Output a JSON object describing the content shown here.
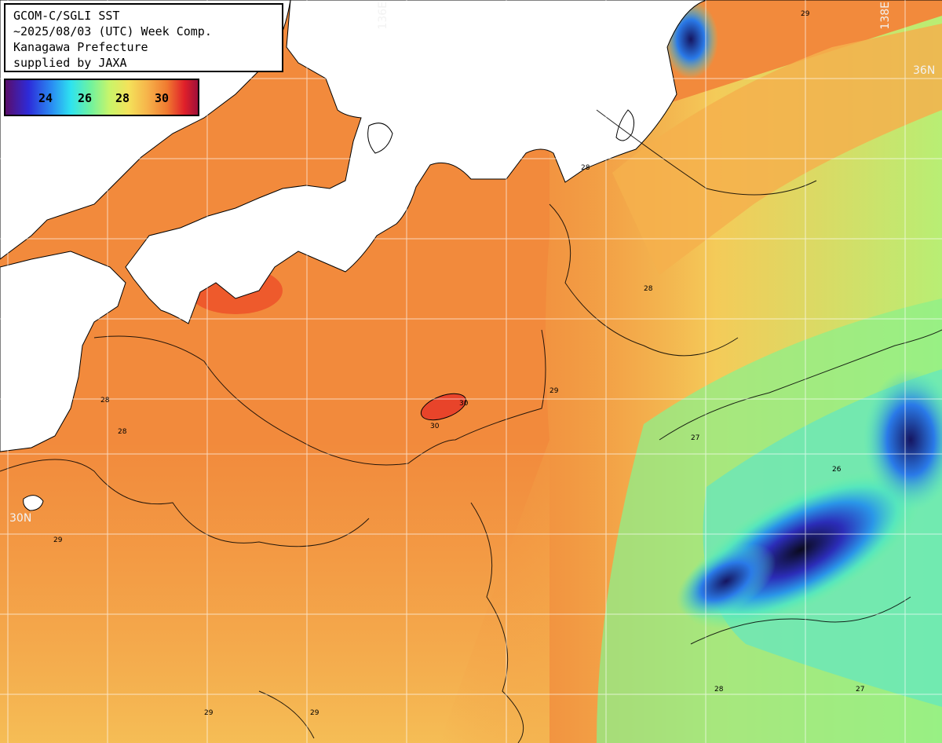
{
  "title_lines": [
    "GCOM-C/SGLI SST",
    "~2025/08/03 (UTC) Week Comp.",
    "Kanagawa Prefecture",
    "supplied by JAXA"
  ],
  "legend": {
    "unit": "",
    "ticks": [
      "24",
      "26",
      "28",
      "30"
    ],
    "colors": [
      "#5a0d6b",
      "#2d2bd9",
      "#2a8cf2",
      "#2ee3f0",
      "#6df2a0",
      "#c8f56a",
      "#f4e25a",
      "#f6b24a",
      "#f07a30",
      "#e0202a",
      "#a0103a"
    ]
  },
  "grid_labels": {
    "lon_136": "136E",
    "lon_138": "138E",
    "lat_36": "36N",
    "lat_30": "30N"
  },
  "contour_labels": [
    "28",
    "29",
    "28",
    "29",
    "30",
    "28",
    "29",
    "27",
    "26",
    "28",
    "29",
    "27",
    "28",
    "29",
    "30"
  ]
}
